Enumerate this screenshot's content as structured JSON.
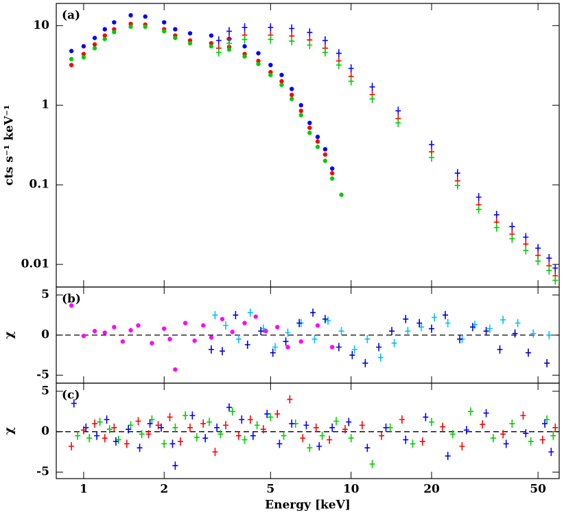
{
  "chart_data": [
    {
      "type": "scatter",
      "panel_label": "(a)",
      "ylabel": "cts s⁻¹ keV⁻¹",
      "log_y": true,
      "log_x": true,
      "xlim": [
        0.79,
        60
      ],
      "xticks": [
        1,
        2,
        5,
        10,
        20,
        50
      ],
      "ylim": [
        0.0052,
        19
      ],
      "yticks": [
        0.01,
        0.1,
        1,
        10
      ],
      "series": [
        {
          "color": "#0000ff",
          "marker": "dot",
          "x": [
            0.9,
            1.0,
            1.1,
            1.2,
            1.3,
            1.5,
            1.7,
            2.0,
            2.2,
            2.5,
            3.0,
            3.5,
            4.0,
            4.5,
            5.0,
            5.5,
            6.0,
            6.5,
            7.0,
            7.5,
            8.0,
            8.5
          ],
          "values": [
            4.8,
            5.5,
            7,
            9,
            11,
            13.5,
            13,
            11,
            9,
            8,
            7.5,
            6.8,
            5.5,
            4.5,
            3.2,
            2.4,
            1.6,
            1.0,
            0.6,
            0.4,
            0.28,
            0.16
          ]
        },
        {
          "color": "#ff0000",
          "marker": "dot",
          "x": [
            0.9,
            1.0,
            1.1,
            1.2,
            1.3,
            1.5,
            1.7,
            2.0,
            2.2,
            2.5,
            3.0,
            3.5,
            4.0,
            4.5,
            5.0,
            5.5,
            6.0,
            6.5,
            7.0,
            7.5,
            8.0,
            8.5
          ],
          "values": [
            3.2,
            4.4,
            5.8,
            7.5,
            9,
            10.5,
            10.3,
            9,
            7.5,
            6.5,
            6.0,
            5.4,
            4.4,
            3.6,
            2.6,
            2.0,
            1.35,
            0.85,
            0.52,
            0.35,
            0.24,
            0.14
          ]
        },
        {
          "color": "#00cc00",
          "marker": "dot",
          "x": [
            0.9,
            1.0,
            1.1,
            1.2,
            1.3,
            1.5,
            1.7,
            2.0,
            2.2,
            2.5,
            3.0,
            3.5,
            4.0,
            4.5,
            5.0,
            5.5,
            6.0,
            6.5,
            7.0,
            7.5,
            8.0,
            8.5,
            9.2
          ],
          "values": [
            3.8,
            4.0,
            5.2,
            6.8,
            8.3,
            9.7,
            9.7,
            8.5,
            7.0,
            6.0,
            5.5,
            5.0,
            4.1,
            3.3,
            2.4,
            1.8,
            1.2,
            0.75,
            0.45,
            0.3,
            0.2,
            0.12,
            0.075
          ]
        },
        {
          "color": "#0000ff",
          "marker": "cross",
          "x": [
            3.2,
            3.5,
            4,
            5,
            6,
            7,
            8,
            9,
            10,
            12,
            15,
            20,
            25,
            30,
            35,
            40,
            45,
            50,
            55,
            58
          ],
          "values": [
            6.5,
            8.5,
            9.5,
            9.5,
            9.2,
            8.2,
            6.5,
            4.5,
            2.9,
            1.7,
            0.85,
            0.32,
            0.14,
            0.07,
            0.042,
            0.03,
            0.022,
            0.016,
            0.012,
            0.009
          ]
        },
        {
          "color": "#ff0000",
          "marker": "cross",
          "x": [
            3.2,
            3.5,
            4,
            5,
            6,
            7,
            8,
            9,
            10,
            12,
            15,
            20,
            25,
            30,
            35,
            40,
            45,
            50,
            55,
            58
          ],
          "values": [
            5.2,
            6.8,
            7.6,
            7.6,
            7.4,
            6.6,
            5.2,
            3.6,
            2.3,
            1.36,
            0.68,
            0.26,
            0.112,
            0.056,
            0.034,
            0.024,
            0.018,
            0.013,
            0.0096,
            0.0072
          ]
        },
        {
          "color": "#00cc00",
          "marker": "cross",
          "x": [
            3.2,
            3.5,
            4,
            5,
            6,
            7,
            8,
            9,
            10,
            12,
            15,
            20,
            25,
            30,
            35,
            40,
            45,
            50,
            55,
            58
          ],
          "values": [
            4.6,
            6.0,
            6.7,
            6.7,
            6.4,
            5.7,
            4.6,
            3.2,
            2.0,
            1.2,
            0.6,
            0.22,
            0.098,
            0.049,
            0.029,
            0.021,
            0.015,
            0.011,
            0.0084,
            0.0063
          ]
        }
      ]
    },
    {
      "type": "scatter",
      "panel_label": "(b)",
      "ylabel": "χ",
      "log_x": true,
      "xlim": [
        0.79,
        60
      ],
      "xticks": [
        1,
        2,
        5,
        10,
        20,
        50
      ],
      "ylim": [
        -6,
        6
      ],
      "yticks": [
        -5,
        0,
        5
      ],
      "series": [
        {
          "color": "#ff00ff",
          "marker": "dot",
          "x": [
            0.9,
            1.0,
            1.1,
            1.2,
            1.3,
            1.4,
            1.5,
            1.6,
            1.8,
            2.0,
            2.1,
            2.2,
            2.4,
            2.6,
            2.8,
            3.0,
            3.3,
            3.6,
            4.0,
            4.4,
            4.8,
            5.3,
            5.8,
            6.5,
            7.5,
            8.5
          ],
          "values": [
            3.7,
            -0.1,
            0.5,
            0.3,
            1.0,
            -0.8,
            0.6,
            1.2,
            -1.0,
            0.8,
            -0.5,
            -4.3,
            1.5,
            -0.7,
            1.2,
            -0.3,
            2.0,
            0.4,
            1.5,
            2.3,
            0.5,
            1.0,
            -1.5,
            -0.8,
            1.2,
            -1.5
          ]
        },
        {
          "color": "#00bfff",
          "marker": "cross",
          "x": [
            3.1,
            3.4,
            3.8,
            4.2,
            4.7,
            5.2,
            5.8,
            6.5,
            7.3,
            8.2,
            9.2,
            10.3,
            11.5,
            12.9,
            14.5,
            16.3,
            18.3,
            20.5,
            23,
            26,
            29,
            33,
            37,
            42,
            48,
            55
          ],
          "values": [
            2.5,
            1.2,
            -0.5,
            2.8,
            0.8,
            -1.5,
            0.3,
            1.5,
            -0.5,
            1.8,
            0.5,
            -1.8,
            -0.5,
            -2.8,
            -1.0,
            0.5,
            1.0,
            2.2,
            1.5,
            -0.5,
            1.3,
            0.8,
            1.9,
            1.5,
            0.2,
            0.0
          ]
        },
        {
          "color": "#0000cc",
          "marker": "cross",
          "x": [
            3.0,
            3.3,
            3.7,
            4.1,
            4.6,
            5.1,
            5.7,
            6.4,
            7.2,
            8.0,
            9.0,
            10.1,
            11.3,
            12.7,
            14.2,
            16.0,
            18.0,
            20.0,
            22.5,
            25.5,
            28.5,
            32,
            36,
            41,
            46,
            54
          ],
          "values": [
            -1.8,
            -2.0,
            2.5,
            -1.2,
            0.5,
            -2.2,
            -0.8,
            1.5,
            2.8,
            2.0,
            -1.5,
            -2.5,
            -3.5,
            -1.5,
            0.5,
            2.0,
            1.5,
            0.8,
            2.5,
            -0.5,
            1.0,
            0.5,
            -1.8,
            0.2,
            -2.2,
            -3.5
          ]
        }
      ]
    },
    {
      "type": "scatter",
      "panel_label": "(c)",
      "ylabel": "χ",
      "log_x": true,
      "xlabel": "Energy [keV]",
      "xlim": [
        0.79,
        60
      ],
      "xticks": [
        1,
        2,
        5,
        10,
        20,
        50
      ],
      "ylim": [
        -5.8,
        6
      ],
      "yticks": [
        -5,
        0,
        5
      ],
      "series": [
        {
          "color": "#ff0000",
          "marker": "cross",
          "x": [
            0.9,
            1.0,
            1.1,
            1.2,
            1.3,
            1.45,
            1.6,
            1.75,
            1.9,
            2.1,
            2.3,
            2.5,
            2.8,
            3.1,
            3.4,
            3.8,
            4.2,
            4.7,
            5.3,
            5.9,
            6.6,
            7.4,
            8.3,
            9.5,
            11,
            13,
            15.5,
            18.5,
            22,
            26,
            31,
            37,
            44,
            52,
            58
          ],
          "values": [
            -1.8,
            0.2,
            1.0,
            -0.8,
            0.5,
            -1.5,
            1.3,
            -0.3,
            0.8,
            1.8,
            -1.2,
            0.5,
            1.0,
            -2.5,
            0.8,
            -0.5,
            1.5,
            0.3,
            2.2,
            4.0,
            -0.8,
            0.5,
            -1.0,
            0.3,
            0.8,
            -0.5,
            1.5,
            -1.2,
            0.6,
            -1.8,
            0.9,
            -0.3,
            2.0,
            -1.0,
            0.5
          ]
        },
        {
          "color": "#00cc00",
          "marker": "cross",
          "x": [
            0.95,
            1.05,
            1.15,
            1.25,
            1.35,
            1.5,
            1.65,
            1.8,
            2.0,
            2.2,
            2.4,
            2.65,
            2.95,
            3.25,
            3.6,
            4.0,
            4.45,
            5.0,
            5.6,
            6.2,
            7.0,
            7.8,
            8.8,
            10,
            12,
            14,
            17,
            20,
            24,
            28,
            34,
            40,
            47,
            54,
            57
          ],
          "values": [
            -0.5,
            -0.8,
            1.2,
            0.3,
            -1.0,
            0.8,
            -0.3,
            1.5,
            -1.5,
            0.5,
            2.0,
            -0.7,
            1.2,
            -0.3,
            2.5,
            -1.0,
            0.8,
            1.8,
            -0.5,
            1.0,
            -2.0,
            -0.5,
            1.3,
            -0.8,
            -4.0,
            0.5,
            -1.5,
            1.2,
            -0.3,
            2.5,
            -0.8,
            1.0,
            -1.2,
            1.5,
            -0.5
          ]
        },
        {
          "color": "#0000ff",
          "marker": "cross",
          "x": [
            0.92,
            1.02,
            1.12,
            1.22,
            1.32,
            1.47,
            1.62,
            1.77,
            1.95,
            2.15,
            2.2,
            2.55,
            2.85,
            3.15,
            3.5,
            3.9,
            4.3,
            4.85,
            5.4,
            6.0,
            6.8,
            7.6,
            8.5,
            9.8,
            11.5,
            13.5,
            16,
            19,
            23,
            27,
            32,
            38,
            45,
            53,
            56
          ],
          "values": [
            3.5,
            0.5,
            -0.5,
            1.5,
            -1.2,
            0.3,
            -2.0,
            1.0,
            0.5,
            -1.5,
            -4.2,
            2.0,
            -0.8,
            0.5,
            3.0,
            1.5,
            -0.5,
            2.2,
            -1.5,
            1.0,
            0.8,
            -1.8,
            0.5,
            1.2,
            -2.0,
            0.5,
            -1.0,
            1.8,
            -3.0,
            0.2,
            2.3,
            -1.5,
            -0.2,
            1.0,
            -2.5
          ]
        }
      ]
    }
  ]
}
